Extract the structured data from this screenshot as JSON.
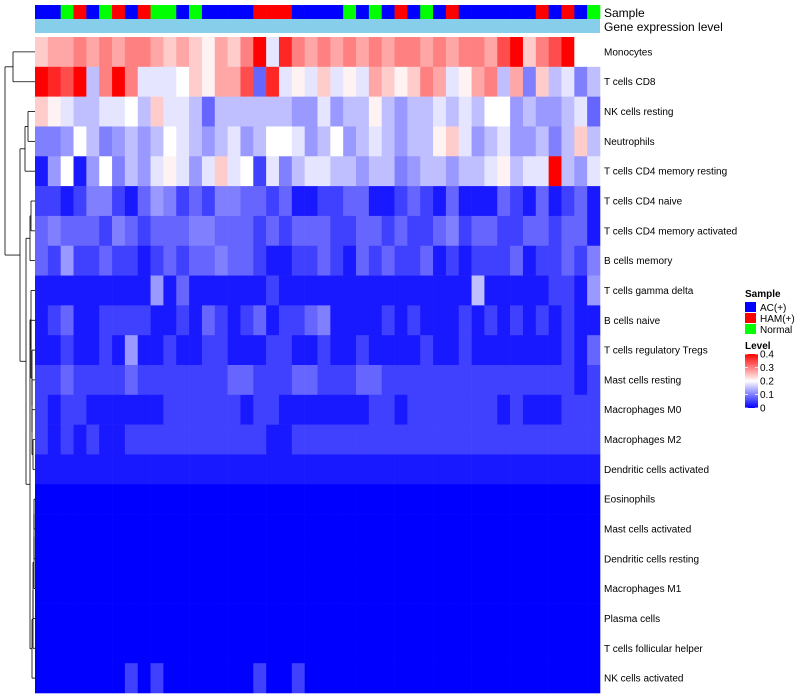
{
  "chart_data": {
    "type": "heatmap",
    "annotation_labels": {
      "sample": "Sample",
      "gene": "Gene expression level"
    },
    "sample_groups": [
      "AC(+)",
      "AC(+)",
      "Normal",
      "HAM(+)",
      "AC(+)",
      "Normal",
      "HAM(+)",
      "AC(+)",
      "HAM(+)",
      "Normal",
      "Normal",
      "AC(+)",
      "Normal",
      "AC(+)",
      "AC(+)",
      "AC(+)",
      "AC(+)",
      "HAM(+)",
      "HAM(+)",
      "HAM(+)",
      "AC(+)",
      "AC(+)",
      "AC(+)",
      "AC(+)",
      "Normal",
      "AC(+)",
      "Normal",
      "AC(+)",
      "HAM(+)",
      "AC(+)",
      "Normal",
      "AC(+)",
      "HAM(+)",
      "AC(+)",
      "AC(+)",
      "AC(+)",
      "AC(+)",
      "AC(+)",
      "AC(+)",
      "HAM(+)",
      "AC(+)",
      "HAM(+)",
      "AC(+)",
      "Normal"
    ],
    "group_colors": {
      "AC(+)": "#0000ff",
      "HAM(+)": "#ff0000",
      "Normal": "#00ff00"
    },
    "gene_level_color": "#87ceeb",
    "row_labels": [
      "Monocytes",
      "T cells CD8",
      "NK cells resting",
      "Neutrophils",
      "T cells CD4 memory resting",
      "T cells CD4 naive",
      "T cells CD4 memory activated",
      "B cells memory",
      "T cells gamma delta",
      "B cells naive",
      "T cells regulatory  Tregs",
      "Mast cells resting",
      "Macrophages M0",
      "Macrophages M2",
      "Dendritic cells activated",
      "Eosinophils",
      "Mast cells activated",
      "Dendritic cells resting",
      "Macrophages M1",
      "Plasma cells",
      "T cells follicular helper",
      "NK cells activated"
    ],
    "values": [
      [
        0.24,
        0.27,
        0.27,
        0.3,
        0.27,
        0.3,
        0.27,
        0.3,
        0.3,
        0.27,
        0.24,
        0.27,
        0.24,
        0.21,
        0.27,
        0.24,
        0.3,
        0.4,
        0.18,
        0.37,
        0.3,
        0.27,
        0.3,
        0.27,
        0.3,
        0.27,
        0.3,
        0.27,
        0.3,
        0.3,
        0.27,
        0.3,
        0.27,
        0.3,
        0.3,
        0.27,
        0.34,
        0.4,
        0.24,
        0.3,
        0.34,
        0.4,
        0.2,
        0.2
      ],
      [
        0.4,
        0.37,
        0.34,
        0.4,
        0.15,
        0.3,
        0.4,
        0.3,
        0.18,
        0.18,
        0.18,
        0.2,
        0.24,
        0.21,
        0.27,
        0.27,
        0.34,
        0.08,
        0.37,
        0.18,
        0.21,
        0.18,
        0.24,
        0.18,
        0.21,
        0.18,
        0.27,
        0.24,
        0.21,
        0.24,
        0.3,
        0.27,
        0.18,
        0.21,
        0.27,
        0.3,
        0.15,
        0.27,
        0.1,
        0.24,
        0.15,
        0.18,
        0.1,
        0.15
      ],
      [
        0.24,
        0.21,
        0.18,
        0.15,
        0.15,
        0.18,
        0.18,
        0.2,
        0.15,
        0.24,
        0.18,
        0.18,
        0.15,
        0.08,
        0.15,
        0.15,
        0.15,
        0.15,
        0.15,
        0.15,
        0.12,
        0.12,
        0.18,
        0.12,
        0.15,
        0.15,
        0.21,
        0.15,
        0.12,
        0.15,
        0.15,
        0.18,
        0.15,
        0.18,
        0.15,
        0.2,
        0.2,
        0.12,
        0.15,
        0.12,
        0.12,
        0.15,
        0.18,
        0.08
      ],
      [
        0.1,
        0.1,
        0.12,
        0.2,
        0.15,
        0.1,
        0.12,
        0.15,
        0.12,
        0.15,
        0.2,
        0.18,
        0.15,
        0.12,
        0.15,
        0.18,
        0.12,
        0.15,
        0.2,
        0.2,
        0.18,
        0.12,
        0.15,
        0.2,
        0.12,
        0.15,
        0.18,
        0.15,
        0.12,
        0.15,
        0.15,
        0.21,
        0.24,
        0.18,
        0.12,
        0.15,
        0.18,
        0.12,
        0.12,
        0.15,
        0.1,
        0.15,
        0.24,
        0.15
      ],
      [
        0.02,
        0.12,
        0.2,
        0.02,
        0.12,
        0.2,
        0.1,
        0.15,
        0.12,
        0.18,
        0.21,
        0.18,
        0.12,
        0.18,
        0.24,
        0.18,
        0.2,
        0.05,
        0.18,
        0.1,
        0.15,
        0.18,
        0.18,
        0.15,
        0.15,
        0.12,
        0.15,
        0.15,
        0.1,
        0.12,
        0.15,
        0.15,
        0.12,
        0.15,
        0.15,
        0.18,
        0.21,
        0.15,
        0.18,
        0.18,
        0.4,
        0.15,
        0.12,
        0.18
      ],
      [
        0.05,
        0.05,
        0.02,
        0.05,
        0.1,
        0.1,
        0.05,
        0.02,
        0.08,
        0.12,
        0.1,
        0.05,
        0.08,
        0.05,
        0.1,
        0.1,
        0.08,
        0.08,
        0.05,
        0.08,
        0.02,
        0.02,
        0.05,
        0.05,
        0.08,
        0.08,
        0.02,
        0.02,
        0.05,
        0.08,
        0.05,
        0.02,
        0.08,
        0.02,
        0.02,
        0.02,
        0.08,
        0.05,
        0.02,
        0.08,
        0.02,
        0.05,
        0.08,
        0.02
      ],
      [
        0.08,
        0.1,
        0.08,
        0.08,
        0.08,
        0.05,
        0.1,
        0.08,
        0.05,
        0.08,
        0.08,
        0.08,
        0.1,
        0.1,
        0.08,
        0.08,
        0.08,
        0.05,
        0.08,
        0.05,
        0.08,
        0.08,
        0.08,
        0.05,
        0.05,
        0.08,
        0.08,
        0.05,
        0.08,
        0.05,
        0.05,
        0.08,
        0.1,
        0.05,
        0.08,
        0.08,
        0.05,
        0.05,
        0.08,
        0.08,
        0.05,
        0.08,
        0.08,
        0.02
      ],
      [
        0.08,
        0.05,
        0.12,
        0.05,
        0.05,
        0.08,
        0.05,
        0.05,
        0.02,
        0.05,
        0.08,
        0.05,
        0.08,
        0.08,
        0.1,
        0.08,
        0.08,
        0.05,
        0.02,
        0.02,
        0.05,
        0.05,
        0.08,
        0.05,
        0.02,
        0.08,
        0.05,
        0.08,
        0.05,
        0.05,
        0.08,
        0.02,
        0.05,
        0.02,
        0.05,
        0.05,
        0.05,
        0.08,
        0.02,
        0.05,
        0.05,
        0.08,
        0.05,
        0.1
      ],
      [
        0.02,
        0.02,
        0.02,
        0.02,
        0.02,
        0.02,
        0.02,
        0.02,
        0.02,
        0.12,
        0.02,
        0.08,
        0.02,
        0.02,
        0.02,
        0.02,
        0.02,
        0.02,
        0.05,
        0.02,
        0.02,
        0.02,
        0.02,
        0.02,
        0.02,
        0.02,
        0.02,
        0.02,
        0.02,
        0.02,
        0.02,
        0.02,
        0.02,
        0.02,
        0.15,
        0.02,
        0.02,
        0.02,
        0.02,
        0.02,
        0.05,
        0.05,
        0.02,
        0.12
      ],
      [
        0.02,
        0.05,
        0.08,
        0.02,
        0.02,
        0.05,
        0.05,
        0.05,
        0.05,
        0.02,
        0.02,
        0.05,
        0.02,
        0.08,
        0.05,
        0.02,
        0.05,
        0.08,
        0.02,
        0.05,
        0.05,
        0.08,
        0.1,
        0.02,
        0.02,
        0.02,
        0.02,
        0.05,
        0.02,
        0.05,
        0.02,
        0.02,
        0.02,
        0.05,
        0.02,
        0.05,
        0.02,
        0.05,
        0.02,
        0.05,
        0.02,
        0.05,
        0.02,
        0.02
      ],
      [
        0.02,
        0.02,
        0.05,
        0.02,
        0.02,
        0.05,
        0.02,
        0.12,
        0.02,
        0.02,
        0.05,
        0.02,
        0.02,
        0.05,
        0.05,
        0.02,
        0.02,
        0.02,
        0.05,
        0.05,
        0.02,
        0.02,
        0.05,
        0.02,
        0.02,
        0.05,
        0.02,
        0.02,
        0.02,
        0.02,
        0.05,
        0.02,
        0.02,
        0.05,
        0.02,
        0.02,
        0.02,
        0.02,
        0.02,
        0.02,
        0.02,
        0.05,
        0.02,
        0.08
      ],
      [
        0.05,
        0.05,
        0.08,
        0.05,
        0.05,
        0.05,
        0.05,
        0.08,
        0.05,
        0.05,
        0.05,
        0.05,
        0.05,
        0.05,
        0.05,
        0.08,
        0.08,
        0.05,
        0.05,
        0.05,
        0.08,
        0.08,
        0.05,
        0.05,
        0.05,
        0.08,
        0.08,
        0.05,
        0.05,
        0.05,
        0.05,
        0.05,
        0.05,
        0.05,
        0.05,
        0.05,
        0.05,
        0.05,
        0.05,
        0.05,
        0.05,
        0.05,
        0.02,
        0.05
      ],
      [
        0.05,
        0.02,
        0.05,
        0.05,
        0.02,
        0.02,
        0.02,
        0.02,
        0.02,
        0.02,
        0.05,
        0.05,
        0.05,
        0.05,
        0.05,
        0.05,
        0.02,
        0.05,
        0.05,
        0.02,
        0.02,
        0.02,
        0.02,
        0.02,
        0.02,
        0.02,
        0.05,
        0.05,
        0.02,
        0.05,
        0.05,
        0.05,
        0.05,
        0.05,
        0.05,
        0.05,
        0.02,
        0.05,
        0.02,
        0.02,
        0.02,
        0.05,
        0.05,
        0.05
      ],
      [
        0.05,
        0.02,
        0.05,
        0.02,
        0.05,
        0.02,
        0.02,
        0.05,
        0.05,
        0.05,
        0.05,
        0.05,
        0.05,
        0.05,
        0.05,
        0.05,
        0.05,
        0.05,
        0.02,
        0.02,
        0.05,
        0.05,
        0.05,
        0.05,
        0.05,
        0.05,
        0.05,
        0.05,
        0.05,
        0.05,
        0.05,
        0.05,
        0.05,
        0.05,
        0.05,
        0.05,
        0.05,
        0.05,
        0.05,
        0.05,
        0.05,
        0.05,
        0.05,
        0.05
      ],
      [
        0.02,
        0.02,
        0.02,
        0.02,
        0.02,
        0.02,
        0.02,
        0.02,
        0.02,
        0.02,
        0.02,
        0.02,
        0.02,
        0.02,
        0.02,
        0.02,
        0.02,
        0.02,
        0.02,
        0.02,
        0.02,
        0.02,
        0.02,
        0.02,
        0.02,
        0.02,
        0.02,
        0.02,
        0.02,
        0.02,
        0.02,
        0.02,
        0.02,
        0.02,
        0.02,
        0.02,
        0.02,
        0.02,
        0.02,
        0.02,
        0.02,
        0.02,
        0.02,
        0.02
      ],
      [
        0,
        0,
        0,
        0,
        0,
        0,
        0,
        0,
        0,
        0,
        0,
        0,
        0,
        0,
        0,
        0,
        0,
        0,
        0,
        0,
        0,
        0,
        0,
        0,
        0,
        0,
        0,
        0,
        0,
        0,
        0,
        0,
        0,
        0,
        0,
        0,
        0,
        0,
        0,
        0,
        0,
        0,
        0,
        0
      ],
      [
        0,
        0,
        0,
        0,
        0,
        0,
        0,
        0,
        0,
        0,
        0,
        0,
        0,
        0,
        0,
        0,
        0,
        0,
        0,
        0,
        0,
        0,
        0,
        0,
        0,
        0,
        0,
        0,
        0,
        0,
        0,
        0,
        0,
        0,
        0,
        0,
        0,
        0,
        0,
        0,
        0,
        0,
        0,
        0
      ],
      [
        0,
        0,
        0,
        0,
        0,
        0,
        0,
        0,
        0,
        0,
        0,
        0,
        0,
        0,
        0,
        0,
        0,
        0,
        0,
        0,
        0,
        0,
        0,
        0,
        0,
        0,
        0,
        0,
        0,
        0,
        0,
        0,
        0,
        0,
        0,
        0,
        0,
        0,
        0,
        0,
        0,
        0,
        0,
        0
      ],
      [
        0,
        0,
        0,
        0,
        0,
        0,
        0,
        0,
        0,
        0,
        0,
        0,
        0,
        0,
        0,
        0,
        0,
        0,
        0,
        0,
        0,
        0,
        0,
        0,
        0,
        0,
        0,
        0,
        0,
        0,
        0,
        0,
        0,
        0,
        0,
        0,
        0,
        0,
        0,
        0,
        0,
        0,
        0,
        0
      ],
      [
        0,
        0,
        0,
        0,
        0,
        0,
        0,
        0,
        0,
        0,
        0,
        0,
        0,
        0,
        0,
        0,
        0,
        0,
        0,
        0,
        0,
        0,
        0,
        0,
        0,
        0,
        0,
        0,
        0,
        0,
        0,
        0,
        0,
        0,
        0,
        0,
        0,
        0,
        0,
        0,
        0,
        0,
        0,
        0
      ],
      [
        0,
        0,
        0,
        0,
        0,
        0,
        0,
        0,
        0,
        0,
        0,
        0,
        0,
        0,
        0,
        0,
        0,
        0,
        0,
        0,
        0,
        0,
        0,
        0,
        0,
        0,
        0,
        0,
        0,
        0,
        0,
        0,
        0,
        0,
        0,
        0,
        0,
        0,
        0,
        0,
        0,
        0,
        0,
        0
      ],
      [
        0,
        0,
        0,
        0,
        0,
        0,
        0,
        0.05,
        0,
        0.05,
        0,
        0,
        0,
        0,
        0,
        0,
        0,
        0.05,
        0,
        0,
        0.05,
        0,
        0,
        0,
        0,
        0,
        0,
        0,
        0,
        0,
        0,
        0,
        0,
        0,
        0,
        0,
        0,
        0,
        0,
        0,
        0,
        0,
        0,
        0
      ]
    ],
    "legend": {
      "sample_title": "Sample",
      "sample_entries": [
        "AC(+)",
        "HAM(+)",
        "Normal"
      ],
      "level_title": "Level",
      "level_ticks": [
        "0.4",
        "0.3",
        "0.2",
        "0.1",
        "0"
      ],
      "level_range": [
        0,
        0.4
      ],
      "scale_colors": {
        "low": "#0000ff",
        "mid": "#ffffff",
        "high": "#ff0000"
      }
    }
  }
}
